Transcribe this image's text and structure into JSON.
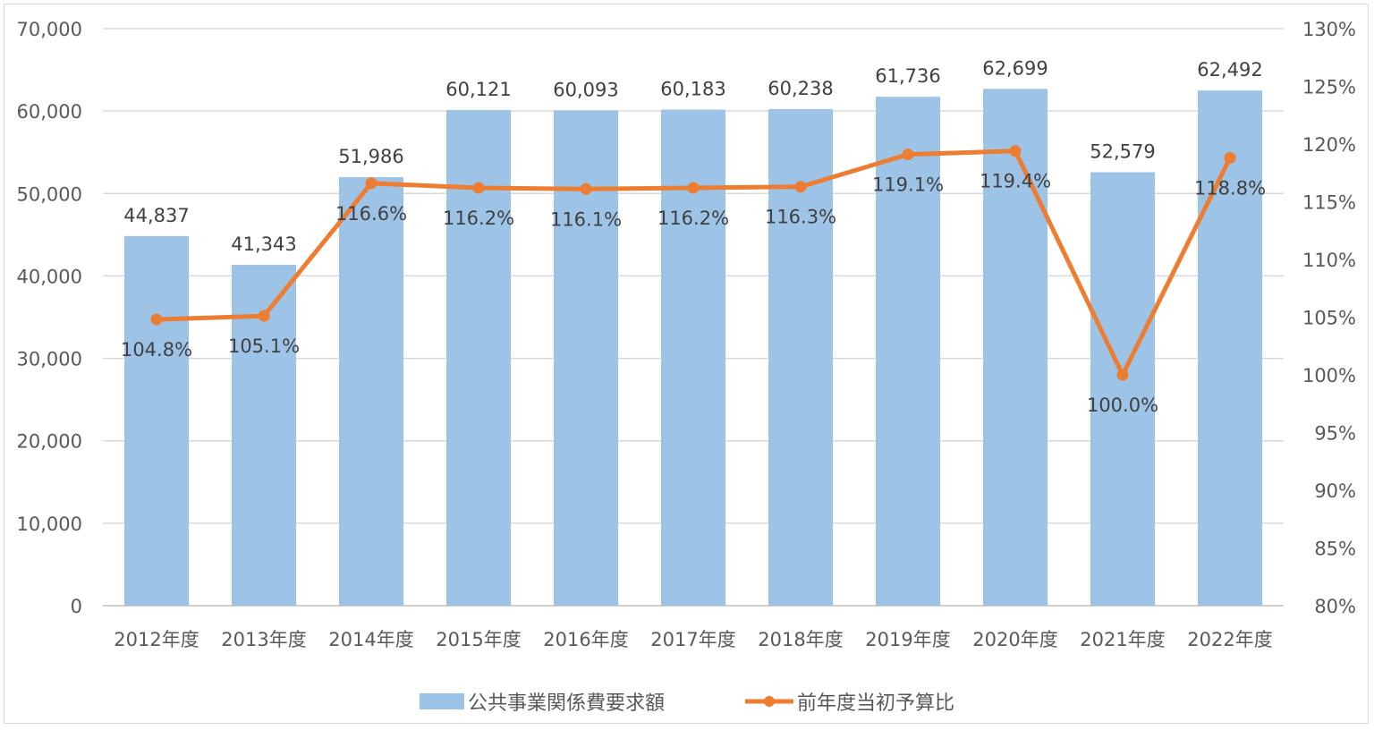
{
  "chart_data": {
    "type": "bar+line",
    "title": "",
    "categories": [
      "2012年度",
      "2013年度",
      "2014年度",
      "2015年度",
      "2016年度",
      "2017年度",
      "2018年度",
      "2019年度",
      "2020年度",
      "2021年度",
      "2022年度"
    ],
    "series": [
      {
        "name": "公共事業関係費要求額",
        "type": "bar",
        "axis": "left",
        "color": "#9dc3e6",
        "values": [
          44837,
          41343,
          51986,
          60121,
          60093,
          60183,
          60238,
          61736,
          62699,
          52579,
          62492
        ],
        "labels": [
          "44,837",
          "41,343",
          "51,986",
          "60,121",
          "60,093",
          "60,183",
          "60,238",
          "61,736",
          "62,699",
          "52,579",
          "62,492"
        ]
      },
      {
        "name": "前年度当初予算比",
        "type": "line",
        "axis": "right",
        "color": "#ed7d31",
        "values": [
          104.8,
          105.1,
          116.6,
          116.2,
          116.1,
          116.2,
          116.3,
          119.1,
          119.4,
          100.0,
          118.8
        ],
        "labels": [
          "104.8%",
          "105.1%",
          "116.6%",
          "116.2%",
          "116.1%",
          "116.2%",
          "116.3%",
          "119.1%",
          "119.4%",
          "100.0%",
          "118.8%"
        ]
      }
    ],
    "y_left": {
      "min": 0,
      "max": 70000,
      "ticks": [
        "0",
        "10,000",
        "20,000",
        "30,000",
        "40,000",
        "50,000",
        "60,000",
        "70,000"
      ]
    },
    "y_right": {
      "min": 80,
      "max": 130,
      "ticks": [
        "80%",
        "85%",
        "90%",
        "95%",
        "100%",
        "105%",
        "110%",
        "115%",
        "120%",
        "125%",
        "130%"
      ]
    },
    "grid": true,
    "legend_position": "bottom"
  },
  "legend": {
    "bar_label": "公共事業関係費要求額",
    "line_label": "前年度当初予算比"
  }
}
